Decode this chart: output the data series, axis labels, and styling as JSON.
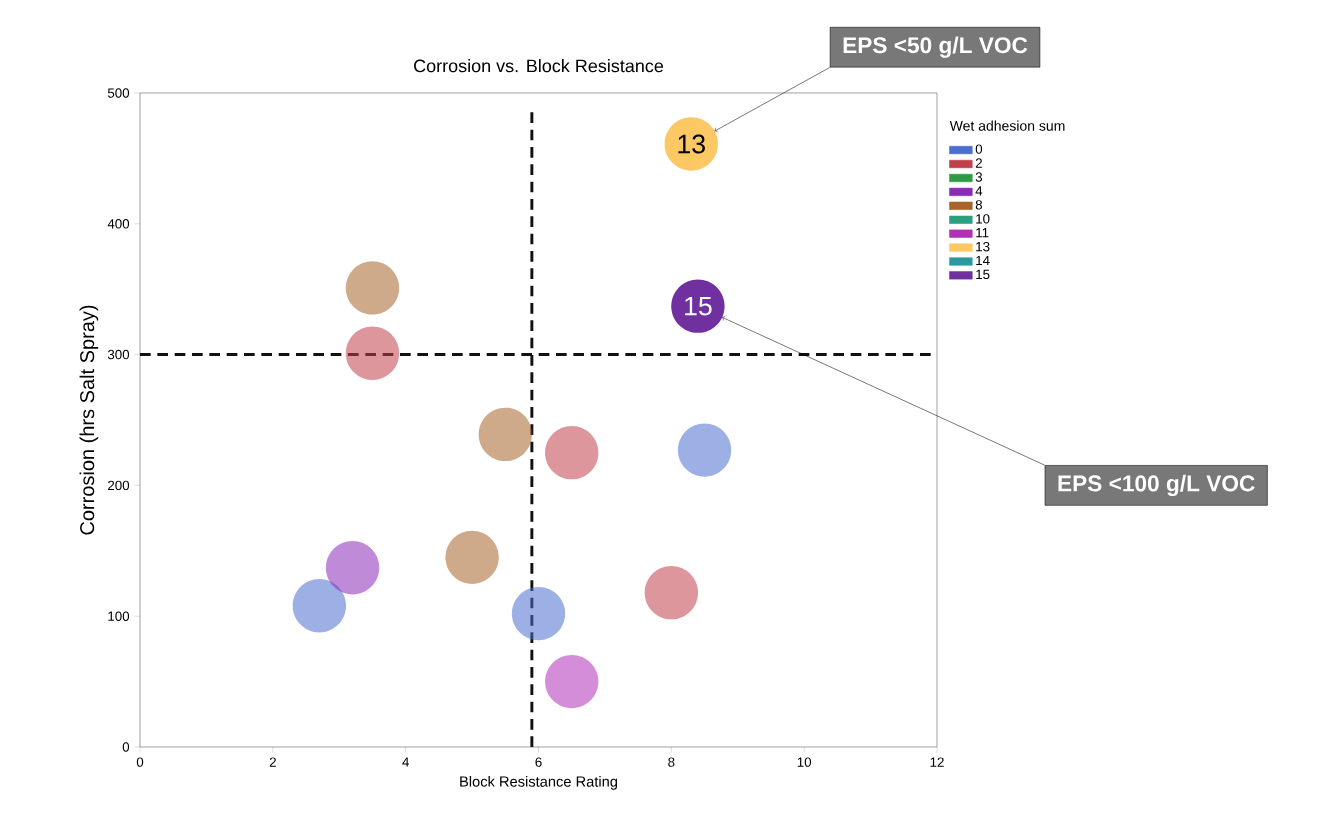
{
  "chart_data": {
    "type": "scatter",
    "title": "Corrosion vs. Block Resistance",
    "xlabel": "Block Resistance Rating",
    "ylabel": "Corrosion (hrs Salt Spray)",
    "legend_title": "Wet adhesion sum",
    "xlim": [
      0,
      12
    ],
    "ylim": [
      0,
      500
    ],
    "xticks": [
      0,
      2,
      4,
      6,
      8,
      10,
      12
    ],
    "yticks": [
      0,
      100,
      200,
      300,
      400,
      500
    ],
    "marker": "circle",
    "legend": "right",
    "grid": false,
    "series": [
      {
        "name": "0",
        "color": "#4a6fd0",
        "x": [
          2.7,
          6.0,
          8.5
        ],
        "values": [
          108,
          102,
          227
        ]
      },
      {
        "name": "2",
        "color": "#c0404a",
        "x": [
          3.5,
          6.5,
          8.0
        ],
        "values": [
          301,
          225,
          118
        ]
      },
      {
        "name": "3",
        "color": "#2f9a45"
      },
      {
        "name": "4",
        "color": "#8a2ab8",
        "x": [
          3.2
        ],
        "values": [
          137
        ]
      },
      {
        "name": "8",
        "color": "#a8642a",
        "x": [
          3.5,
          5.5,
          5.0
        ],
        "values": [
          351,
          239,
          145
        ]
      },
      {
        "name": "10",
        "color": "#2aa080"
      },
      {
        "name": "11",
        "color": "#b030b8",
        "x": [
          6.5
        ],
        "values": [
          50
        ]
      },
      {
        "name": "13",
        "color": "#fbc863",
        "x": [
          8.3
        ],
        "values": [
          461
        ]
      },
      {
        "name": "14",
        "color": "#2a9aa0"
      },
      {
        "name": "15",
        "color": "#7030a0",
        "x": [
          8.4
        ],
        "values": [
          337
        ]
      }
    ],
    "ref_lines": [
      {
        "axis": "x",
        "value": 5.9,
        "color": "#111111",
        "line_style": "dashed"
      },
      {
        "axis": "y",
        "value": 300,
        "color": "#111111",
        "line_style": "dashed"
      }
    ],
    "annotations": [
      "EPS <50 g/L  VOC",
      "EPS <100 g/L VOC",
      {
        "text": "13",
        "x": 8.3,
        "y": 461
      },
      {
        "text": "15",
        "x": 8.4,
        "y": 337
      }
    ]
  }
}
